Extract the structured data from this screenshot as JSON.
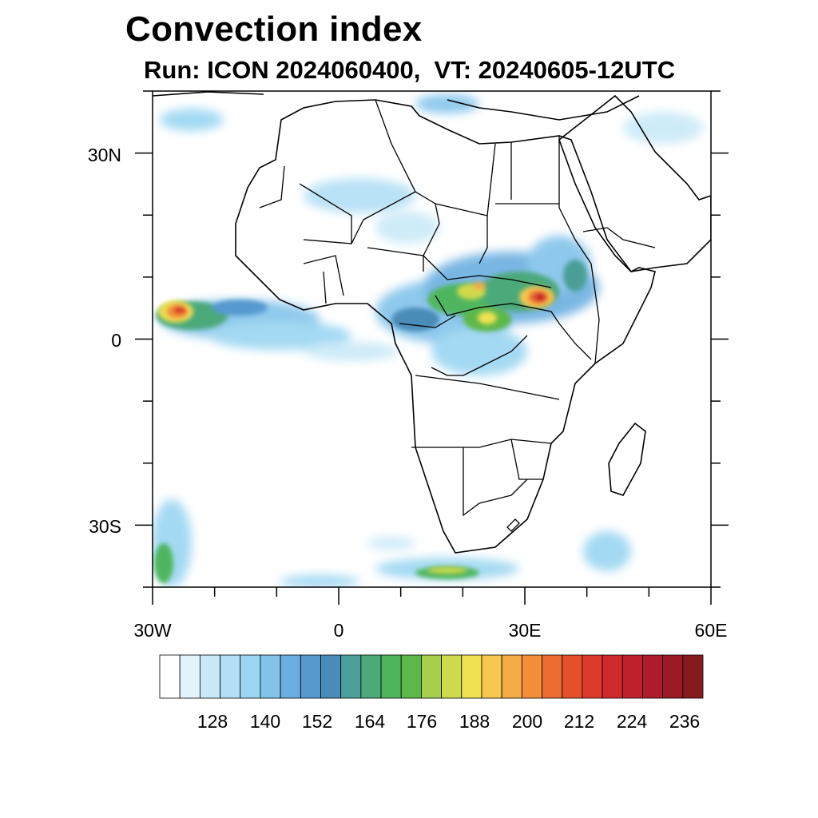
{
  "title": "Convection index",
  "subtitle": "Run: ICON 2024060400,  VT: 20240605-12UTC",
  "map": {
    "lon_range": [
      -30,
      60
    ],
    "lat_range": [
      -40,
      40
    ],
    "lon_ticks": [
      "30W",
      "0",
      "30E",
      "60E"
    ],
    "lat_ticks": [
      "30N",
      "0",
      "30S"
    ]
  },
  "colorbar": {
    "labels": [
      "128",
      "140",
      "152",
      "164",
      "176",
      "188",
      "200",
      "212",
      "224",
      "236"
    ],
    "colors": [
      "#ffffff",
      "#e4f4fc",
      "#c9e9f8",
      "#b2dff5",
      "#9ad5f2",
      "#82c3ea",
      "#6aafe0",
      "#5699cf",
      "#4a8cb8",
      "#4c9e98",
      "#4ba97a",
      "#4fb65e",
      "#5db84a",
      "#a7cf4e",
      "#cfd94c",
      "#efe151",
      "#f7c750",
      "#f5ab46",
      "#f38f3b",
      "#ed6d32",
      "#e4502b",
      "#db3a2b",
      "#cf2a2c",
      "#c01f2c",
      "#ae1b2a",
      "#9b1a25",
      "#861a1f"
    ]
  }
}
